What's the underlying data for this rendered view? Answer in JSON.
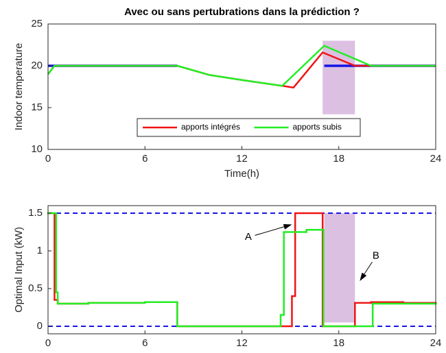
{
  "chart_data": [
    {
      "type": "line",
      "title": "Avec ou sans pertubrations dans la prédiction ?",
      "xlabel": "Time(h)",
      "ylabel": "Indoor temperature",
      "xlim": [
        0,
        24
      ],
      "xticks": [
        0,
        6,
        12,
        18,
        24
      ],
      "ylim": [
        10,
        25
      ],
      "yticks": [
        10,
        15,
        20,
        25
      ],
      "legend": "lower center",
      "shaded": {
        "x": [
          17,
          19
        ],
        "y": [
          14.2,
          23
        ],
        "color": "#dcc0e2"
      },
      "series": [
        {
          "color": "#1414e6",
          "width": 3.5,
          "x": [
            0,
            8,
            12,
            17.1,
            24
          ],
          "values": [
            20,
            20,
            null,
            20,
            20
          ]
        },
        {
          "name": "apports intégrés",
          "color": "#f01414",
          "width": 2.5,
          "x": [
            0,
            0.4,
            8,
            10,
            12,
            14.5,
            15.2,
            17,
            18,
            19,
            24
          ],
          "values": [
            19,
            20,
            20,
            18.9,
            18.3,
            17.6,
            17.4,
            21.6,
            20.8,
            20,
            20
          ]
        },
        {
          "name": "apports subis",
          "color": "#22ee22",
          "width": 2.5,
          "x": [
            0,
            0.4,
            8,
            10,
            12,
            14.5,
            17.1,
            20,
            24
          ],
          "values": [
            19,
            20,
            20,
            18.9,
            18.3,
            17.6,
            22.4,
            20,
            20
          ]
        }
      ]
    },
    {
      "type": "step",
      "ylabel": "Optimal Input (kW)",
      "xlim": [
        0,
        24
      ],
      "xticks": [
        0,
        6,
        12,
        18,
        24
      ],
      "ylim": [
        -0.1,
        1.6
      ],
      "yticks": [
        0,
        0.5,
        1,
        1.5
      ],
      "shaded": {
        "x": [
          17.1,
          19
        ],
        "y": [
          0.05,
          1.5
        ],
        "color": "#dcc0e2"
      },
      "bounds": {
        "values": [
          0,
          1.5
        ],
        "color": "#1414e6"
      },
      "annotations": [
        {
          "text": "A",
          "x": 12.4,
          "y": 1.18,
          "ax": 15.1,
          "ay": 1.35
        },
        {
          "text": "B",
          "x": 20.3,
          "y": 0.93,
          "ax": 19.3,
          "ay": 0.6
        }
      ],
      "series": [
        {
          "color": "#f01414",
          "width": 2.5,
          "x": [
            0,
            0.4,
            0.6,
            2.5,
            6,
            8,
            15.1,
            15.3,
            17,
            19,
            20,
            22,
            24
          ],
          "values": [
            1.5,
            0.35,
            0.3,
            0.31,
            0.32,
            0,
            0.4,
            1.5,
            0,
            0.31,
            0.32,
            0.31,
            0.3
          ]
        },
        {
          "color": "#22ee22",
          "width": 2.5,
          "x": [
            0,
            0.5,
            0.6,
            2.5,
            6,
            8,
            14.4,
            14.6,
            16,
            17.05,
            20.1,
            24
          ],
          "values": [
            1.5,
            0.45,
            0.3,
            0.31,
            0.32,
            0,
            0.15,
            1.25,
            1.28,
            0,
            0.3,
            0.3
          ]
        }
      ]
    }
  ]
}
